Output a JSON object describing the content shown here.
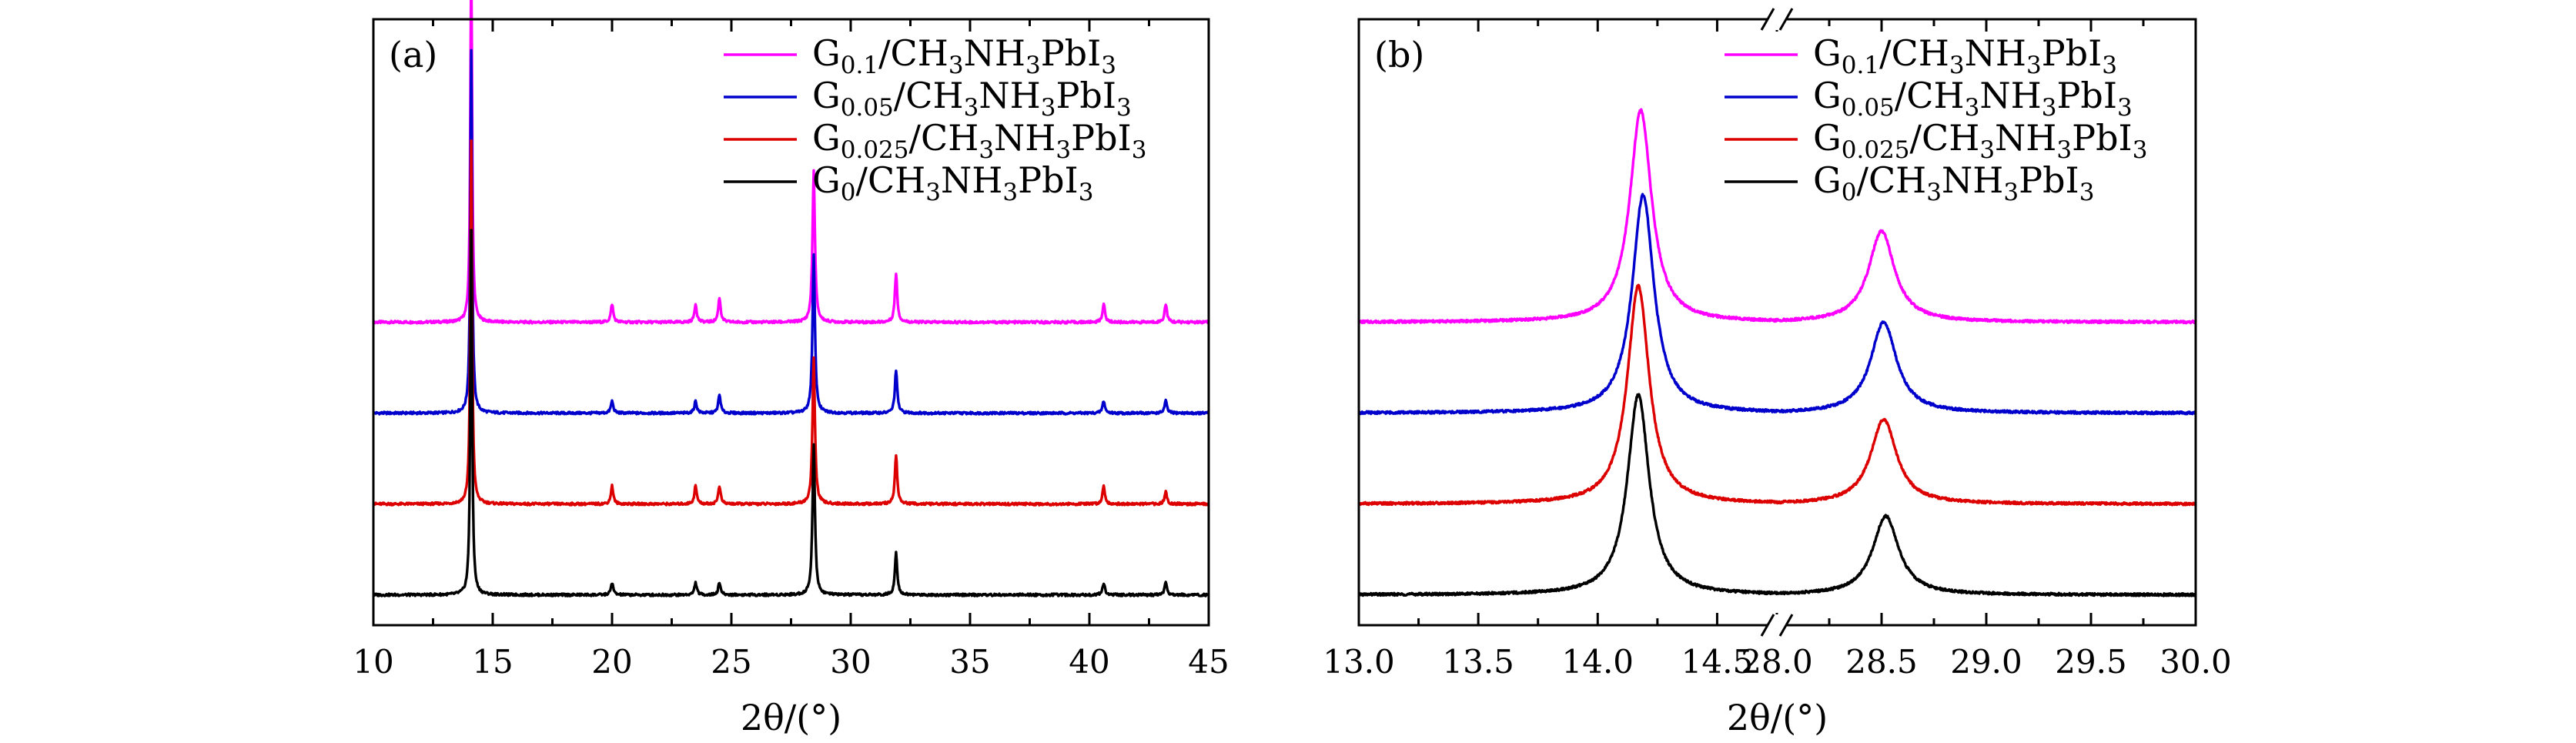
{
  "chart_data": [
    {
      "type": "line",
      "panel_label": "(a)",
      "xlabel": "2θ/(°)",
      "ylabel": "",
      "xlim": [
        10,
        45
      ],
      "xticks": [
        10,
        15,
        20,
        25,
        30,
        35,
        40,
        45
      ],
      "y_axis_ticks": false,
      "grid": false,
      "legend_position": "top-right",
      "series": [
        {
          "name": "G0.1/CH3NH3PbI3",
          "color": "#ff00ff",
          "baseline": 0.5,
          "peaks": [
            [
              14.1,
              0.6
            ],
            [
              20.0,
              0.03
            ],
            [
              23.5,
              0.03
            ],
            [
              24.5,
              0.04
            ],
            [
              28.45,
              0.25
            ],
            [
              31.9,
              0.08
            ],
            [
              40.6,
              0.03
            ],
            [
              43.2,
              0.03
            ]
          ]
        },
        {
          "name": "G0.05/CH3NH3PbI3",
          "color": "#0000cc",
          "baseline": 0.35,
          "peaks": [
            [
              14.1,
              0.6
            ],
            [
              20.0,
              0.02
            ],
            [
              23.5,
              0.02
            ],
            [
              24.5,
              0.03
            ],
            [
              28.45,
              0.26
            ],
            [
              31.9,
              0.07
            ],
            [
              40.6,
              0.02
            ],
            [
              43.2,
              0.02
            ]
          ]
        },
        {
          "name": "G0.025/CH3NH3PbI3",
          "color": "#dd0000",
          "baseline": 0.2,
          "peaks": [
            [
              14.1,
              0.6
            ],
            [
              20.0,
              0.03
            ],
            [
              23.5,
              0.03
            ],
            [
              24.5,
              0.03
            ],
            [
              28.45,
              0.24
            ],
            [
              31.9,
              0.08
            ],
            [
              40.6,
              0.03
            ],
            [
              43.2,
              0.02
            ]
          ]
        },
        {
          "name": "G0/CH3NH3PbI3",
          "color": "#000000",
          "baseline": 0.05,
          "peaks": [
            [
              14.1,
              0.6
            ],
            [
              20.0,
              0.02
            ],
            [
              23.5,
              0.02
            ],
            [
              24.5,
              0.02
            ],
            [
              28.45,
              0.25
            ],
            [
              31.9,
              0.07
            ],
            [
              40.6,
              0.02
            ],
            [
              43.2,
              0.02
            ]
          ]
        }
      ]
    },
    {
      "type": "line",
      "panel_label": "(b)",
      "xlabel": "2θ/(°)",
      "ylabel": "",
      "broken_axis": true,
      "x_segments": [
        [
          13.0,
          14.75
        ],
        [
          28.0,
          30.0
        ]
      ],
      "xticks": [
        13.0,
        13.5,
        14.0,
        14.5,
        28.0,
        28.5,
        29.0,
        29.5,
        30.0
      ],
      "xtick_labels": [
        "13.0",
        "13.5",
        "14.0",
        "14.5",
        "28.0",
        "28.5",
        "29.0",
        "29.5",
        "30.0"
      ],
      "y_axis_ticks": false,
      "grid": false,
      "legend_position": "top-right",
      "series": [
        {
          "name": "G0.1/CH3NH3PbI3",
          "color": "#ff00ff",
          "baseline": 0.5,
          "peaks": [
            [
              14.18,
              0.35
            ],
            [
              28.5,
              0.15
            ]
          ]
        },
        {
          "name": "G0.05/CH3NH3PbI3",
          "color": "#0000cc",
          "baseline": 0.35,
          "peaks": [
            [
              14.19,
              0.36
            ],
            [
              28.51,
              0.15
            ]
          ]
        },
        {
          "name": "G0.025/CH3NH3PbI3",
          "color": "#dd0000",
          "baseline": 0.2,
          "peaks": [
            [
              14.17,
              0.36
            ],
            [
              28.51,
              0.14
            ]
          ]
        },
        {
          "name": "G0/CH3NH3PbI3",
          "color": "#000000",
          "baseline": 0.05,
          "peaks": [
            [
              14.17,
              0.33
            ],
            [
              28.52,
              0.13
            ]
          ]
        }
      ]
    }
  ],
  "legend": {
    "entries": [
      {
        "base": "G",
        "sub": "0.1",
        "rest": [
          [
            "/CH",
            ""
          ],
          [
            "3",
            "s"
          ],
          [
            "NH",
            ""
          ],
          [
            "3",
            "s"
          ],
          [
            "PbI",
            ""
          ],
          [
            "3",
            "s"
          ]
        ]
      },
      {
        "base": "G",
        "sub": "0.05",
        "rest": [
          [
            "/CH",
            ""
          ],
          [
            "3",
            "s"
          ],
          [
            "NH",
            ""
          ],
          [
            "3",
            "s"
          ],
          [
            "PbI",
            ""
          ],
          [
            "3",
            "s"
          ]
        ]
      },
      {
        "base": "G",
        "sub": "0.025",
        "rest": [
          [
            "/CH",
            ""
          ],
          [
            "3",
            "s"
          ],
          [
            "NH",
            ""
          ],
          [
            "3",
            "s"
          ],
          [
            "PbI",
            ""
          ],
          [
            "3",
            "s"
          ]
        ]
      },
      {
        "base": "G",
        "sub": "0",
        "rest": [
          [
            "/CH",
            ""
          ],
          [
            "3",
            "s"
          ],
          [
            "NH",
            ""
          ],
          [
            "3",
            "s"
          ],
          [
            "PbI",
            ""
          ],
          [
            "3",
            "s"
          ]
        ]
      }
    ]
  }
}
